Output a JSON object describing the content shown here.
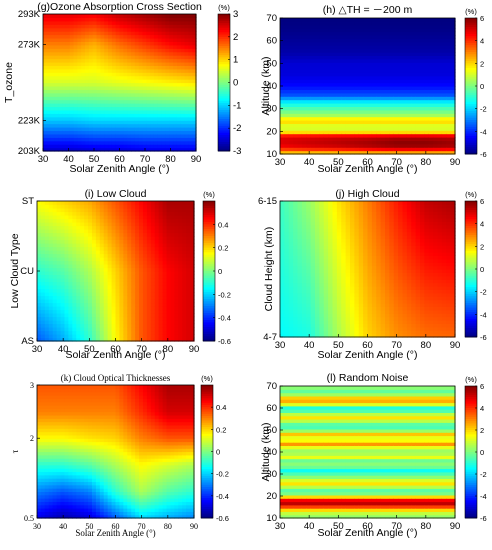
{
  "chart_data": [
    {
      "id": "g",
      "type": "heatmap",
      "title": "(g)Ozone Absorption Cross Section",
      "xlabel": "Solar Zenith Angle (°)",
      "ylabel": "T_ozone",
      "x": [
        30,
        40,
        50,
        60,
        70,
        80,
        90
      ],
      "y": [
        203,
        223,
        248,
        273,
        293
      ],
      "xticks": [
        "30",
        "40",
        "50",
        "60",
        "70",
        "80",
        "90"
      ],
      "yticks": [
        {
          "v": 203,
          "label": "203K"
        },
        {
          "v": 223,
          "label": "223K"
        },
        {
          "v": 273,
          "label": "273K"
        },
        {
          "v": 293,
          "label": "293K"
        }
      ],
      "z": [
        [
          -2.6,
          -2.6,
          -2.5,
          -2.5,
          -2.4,
          -2.4,
          -2.4
        ],
        [
          -1.1,
          -1.1,
          -1.0,
          -1.0,
          -1.0,
          -1.0,
          -1.0
        ],
        [
          0.5,
          0.5,
          0.5,
          0.6,
          0.7,
          0.8,
          0.9
        ],
        [
          1.5,
          1.5,
          1.2,
          1.6,
          1.9,
          2.2,
          2.4
        ],
        [
          2.4,
          2.4,
          2.3,
          2.6,
          2.8,
          3.0,
          3.0
        ]
      ],
      "colorbar": {
        "label": "(%)",
        "min": -3,
        "max": 3,
        "ticks": [
          3,
          2,
          1,
          0,
          -1,
          -2,
          -3
        ]
      },
      "grid": false
    },
    {
      "id": "h",
      "type": "heatmap",
      "title": "(h) △TH = －200 m",
      "xlabel": "Solar Zenith Angle (°)",
      "ylabel": "Altitude (km)",
      "x": [
        30,
        40,
        50,
        60,
        70,
        80,
        90
      ],
      "y": [
        10,
        13,
        16,
        18,
        20,
        22,
        25,
        27,
        30,
        33,
        36,
        40,
        45,
        50,
        55,
        60,
        65,
        70
      ],
      "xticks": [
        "30",
        "40",
        "50",
        "60",
        "70",
        "80",
        "90"
      ],
      "yticks": [
        {
          "v": 10,
          "label": "10"
        },
        {
          "v": 20,
          "label": "20"
        },
        {
          "v": 30,
          "label": "30"
        },
        {
          "v": 40,
          "label": "40"
        },
        {
          "v": 50,
          "label": "50"
        },
        {
          "v": 60,
          "label": "60"
        },
        {
          "v": 70,
          "label": "70"
        }
      ],
      "z": [
        [
          1.5,
          1.5,
          1.5,
          1.6,
          1.6,
          1.6,
          1.6
        ],
        [
          4.5,
          4.8,
          5.0,
          5.3,
          5.6,
          5.6,
          5.4
        ],
        [
          5.0,
          5.2,
          5.4,
          5.6,
          5.9,
          5.9,
          5.7
        ],
        [
          4.6,
          4.7,
          4.8,
          4.9,
          5.1,
          5.1,
          5.0
        ],
        [
          1.5,
          1.5,
          1.5,
          1.5,
          1.5,
          1.5,
          1.5
        ],
        [
          0.8,
          0.8,
          0.8,
          0.8,
          0.8,
          0.8,
          0.8
        ],
        [
          2.2,
          2.2,
          2.2,
          2.2,
          2.2,
          2.2,
          2.2
        ],
        [
          0.5,
          0.5,
          0.5,
          0.5,
          0.5,
          0.5,
          0.5
        ],
        [
          -0.5,
          -0.5,
          -0.5,
          -0.5,
          -0.5,
          -0.5,
          -0.5
        ],
        [
          -1.6,
          -1.6,
          -1.6,
          -1.6,
          -1.6,
          -1.6,
          -1.6
        ],
        [
          -3.5,
          -3.5,
          -3.5,
          -3.5,
          -3.5,
          -3.5,
          -3.5
        ],
        [
          -4.4,
          -4.4,
          -4.4,
          -4.4,
          -4.4,
          -4.4,
          -4.4
        ],
        [
          -4.9,
          -4.9,
          -4.9,
          -4.9,
          -4.9,
          -4.9,
          -4.9
        ],
        [
          -5.0,
          -5.0,
          -5.0,
          -5.0,
          -5.0,
          -5.0,
          -5.0
        ],
        [
          -5.5,
          -5.5,
          -5.5,
          -5.5,
          -5.5,
          -5.5,
          -5.5
        ],
        [
          -5.7,
          -5.7,
          -5.7,
          -5.7,
          -5.7,
          -5.7,
          -5.7
        ],
        [
          -5.9,
          -5.9,
          -5.9,
          -5.9,
          -5.9,
          -5.9,
          -5.9
        ],
        [
          -6.0,
          -6.0,
          -6.0,
          -6.0,
          -6.0,
          -6.0,
          -6.0
        ]
      ],
      "colorbar": {
        "label": "(%)",
        "min": -6,
        "max": 6,
        "ticks": [
          6,
          4,
          2,
          0,
          -2,
          -4,
          -6
        ]
      },
      "grid": false
    },
    {
      "id": "i",
      "type": "heatmap",
      "title": "(i) Low Cloud",
      "xlabel": "Solar Zenith Angle (°)",
      "ylabel": "Low Cloud Type",
      "x": [
        30,
        40,
        50,
        60,
        70,
        80,
        90
      ],
      "y": [
        0,
        1,
        2
      ],
      "xticks": [
        "30",
        "40",
        "50",
        "60",
        "70",
        "80",
        "90"
      ],
      "yticks": [
        {
          "v": 0,
          "label": "AS"
        },
        {
          "v": 1,
          "label": "CU"
        },
        {
          "v": 2,
          "label": "ST"
        }
      ],
      "z": [
        [
          -0.35,
          -0.25,
          -0.1,
          0.15,
          0.35,
          0.45,
          0.5
        ],
        [
          -0.1,
          -0.05,
          0.05,
          0.2,
          0.35,
          0.45,
          0.5
        ],
        [
          0.15,
          0.2,
          0.25,
          0.35,
          0.45,
          0.55,
          0.55
        ]
      ],
      "colorbar": {
        "label": "(%)",
        "min": -0.6,
        "max": 0.6,
        "ticks": [
          0.4,
          0.2,
          0,
          -0.2,
          -0.4,
          -0.6
        ]
      },
      "grid": false
    },
    {
      "id": "j",
      "type": "heatmap",
      "title": "(j) High Cloud",
      "xlabel": "Solar Zenith Angle (°)",
      "ylabel": "Cloud Height (km)",
      "x": [
        30,
        40,
        50,
        60,
        70,
        80,
        90
      ],
      "y": [
        0,
        1
      ],
      "xticks": [
        "30",
        "40",
        "50",
        "60",
        "70",
        "80",
        "90"
      ],
      "yticks": [
        {
          "v": 0,
          "label": "4-7"
        },
        {
          "v": 1,
          "label": "6-15"
        }
      ],
      "z": [
        [
          -1.5,
          -1.2,
          0.5,
          2.0,
          2.8,
          3.2,
          3.3
        ],
        [
          -0.8,
          0.3,
          1.8,
          3.0,
          4.2,
          5.2,
          5.5
        ]
      ],
      "colorbar": {
        "label": "(%)",
        "min": -6,
        "max": 6,
        "ticks": [
          6,
          4,
          2,
          0,
          -2,
          -4,
          -6
        ]
      },
      "grid": false
    },
    {
      "id": "k",
      "type": "heatmap",
      "title": "(k) Cloud Optical Thicknesses",
      "xlabel": "Solar Zenith Angle (°)",
      "ylabel": "τ",
      "x": [
        30,
        40,
        50,
        60,
        70,
        80,
        90
      ],
      "y": [
        0.5,
        1,
        1.5,
        2,
        2.5,
        3
      ],
      "xticks": [
        "30",
        "40",
        "50",
        "60",
        "70",
        "80",
        "90"
      ],
      "yticks": [
        {
          "v": 0.5,
          "label": "0.5"
        },
        {
          "v": 2,
          "label": "2"
        },
        {
          "v": 3,
          "label": "3"
        }
      ],
      "z": [
        [
          -0.48,
          -0.55,
          -0.5,
          -0.35,
          -0.2,
          -0.25,
          -0.3
        ],
        [
          -0.3,
          -0.35,
          -0.3,
          -0.1,
          0.05,
          -0.05,
          -0.1
        ],
        [
          -0.1,
          -0.1,
          -0.05,
          0.05,
          0.15,
          0.1,
          0.05
        ],
        [
          0.15,
          0.15,
          0.18,
          0.2,
          0.3,
          0.35,
          0.35
        ],
        [
          0.3,
          0.3,
          0.3,
          0.3,
          0.4,
          0.5,
          0.5
        ],
        [
          0.35,
          0.35,
          0.35,
          0.35,
          0.45,
          0.55,
          0.55
        ]
      ],
      "colorbar": {
        "label": "(%)",
        "min": -0.6,
        "max": 0.6,
        "ticks": [
          0.4,
          0.2,
          0,
          -0.2,
          -0.4,
          -0.6
        ]
      },
      "grid": false
    },
    {
      "id": "l",
      "type": "heatmap",
      "title": "(l) Random Noise",
      "xlabel": "Solar Zenith Angle (°)",
      "ylabel": "Altitude (km)",
      "x": [
        30,
        40,
        50,
        60,
        70,
        80,
        90
      ],
      "y": [
        10,
        13,
        15,
        17,
        18,
        20,
        22,
        24,
        26,
        28,
        30,
        32,
        34,
        36,
        38,
        40,
        42,
        44,
        46,
        48,
        50,
        52,
        54,
        56,
        58,
        60,
        62,
        64,
        66,
        68,
        70
      ],
      "xticks": [
        "30",
        "40",
        "50",
        "60",
        "70",
        "80",
        "90"
      ],
      "yticks": [
        {
          "v": 10,
          "label": "10"
        },
        {
          "v": 20,
          "label": "20"
        },
        {
          "v": 30,
          "label": "30"
        },
        {
          "v": 40,
          "label": "40"
        },
        {
          "v": 50,
          "label": "50"
        },
        {
          "v": 60,
          "label": "60"
        },
        {
          "v": 70,
          "label": "70"
        }
      ],
      "z": [
        [
          0.0,
          0.0,
          0.0,
          0.0,
          0.0,
          0.0,
          0.0
        ],
        [
          1.0,
          1.0,
          1.0,
          1.0,
          1.0,
          1.0,
          1.0
        ],
        [
          3.5,
          3.5,
          3.5,
          3.5,
          3.5,
          3.5,
          3.5
        ],
        [
          5.5,
          5.5,
          5.5,
          5.5,
          5.5,
          5.5,
          5.5
        ],
        [
          5.0,
          5.0,
          5.0,
          5.0,
          5.0,
          5.0,
          5.0
        ],
        [
          1.5,
          1.5,
          1.5,
          1.5,
          1.5,
          1.5,
          1.5
        ],
        [
          -1.0,
          -1.0,
          -1.0,
          -1.0,
          -1.0,
          -1.0,
          -1.0
        ],
        [
          0.5,
          0.5,
          0.5,
          0.5,
          0.5,
          0.5,
          0.5
        ],
        [
          2.0,
          2.0,
          2.0,
          2.0,
          2.0,
          2.0,
          2.0
        ],
        [
          0.5,
          0.5,
          0.5,
          0.5,
          0.5,
          0.5,
          0.5
        ],
        [
          -0.5,
          -0.5,
          -0.5,
          -0.5,
          -0.5,
          -0.5,
          -0.5
        ],
        [
          -1.5,
          -1.5,
          -1.5,
          -1.5,
          -1.5,
          -1.5,
          -1.5
        ],
        [
          0.5,
          0.5,
          0.5,
          0.5,
          0.5,
          0.5,
          0.5
        ],
        [
          -0.5,
          -0.5,
          -0.5,
          -0.5,
          -0.5,
          -0.5,
          -0.5
        ],
        [
          1.5,
          1.5,
          1.5,
          1.5,
          1.5,
          1.5,
          1.5
        ],
        [
          0.0,
          0.0,
          0.0,
          0.0,
          0.0,
          0.0,
          0.0
        ],
        [
          1.0,
          1.0,
          1.0,
          1.0,
          1.0,
          1.0,
          1.0
        ],
        [
          3.0,
          3.0,
          3.0,
          3.0,
          3.0,
          3.0,
          3.0
        ],
        [
          0.5,
          0.5,
          0.5,
          0.5,
          0.5,
          0.5,
          0.5
        ],
        [
          2.5,
          2.5,
          2.5,
          2.5,
          2.5,
          2.5,
          2.5
        ],
        [
          0.0,
          0.0,
          0.0,
          0.0,
          0.0,
          0.0,
          0.0
        ],
        [
          -1.0,
          -1.0,
          -1.0,
          -1.0,
          -1.0,
          -1.0,
          -1.0
        ],
        [
          0.5,
          0.5,
          0.5,
          0.5,
          0.5,
          0.5,
          0.5
        ],
        [
          2.0,
          2.0,
          2.0,
          2.0,
          2.0,
          2.0,
          2.0
        ],
        [
          0.0,
          0.0,
          0.0,
          0.0,
          0.0,
          0.0,
          0.0
        ],
        [
          -1.5,
          -1.5,
          -1.5,
          -1.5,
          -1.5,
          -1.5,
          -1.5
        ],
        [
          1.5,
          1.5,
          1.5,
          1.5,
          1.5,
          1.5,
          1.5
        ],
        [
          3.0,
          3.0,
          3.0,
          3.0,
          3.0,
          3.0,
          3.0
        ],
        [
          0.5,
          0.5,
          0.5,
          0.5,
          0.5,
          0.5,
          0.5
        ],
        [
          -0.5,
          -0.5,
          -0.5,
          -0.5,
          -0.5,
          -0.5,
          -0.5
        ],
        [
          0.5,
          0.5,
          0.5,
          0.5,
          0.5,
          0.5,
          0.5
        ]
      ],
      "colorbar": {
        "label": "(%)",
        "min": -6,
        "max": 6,
        "ticks": [
          6,
          4,
          2,
          0,
          -2,
          -4,
          -6
        ]
      },
      "grid": false
    }
  ]
}
